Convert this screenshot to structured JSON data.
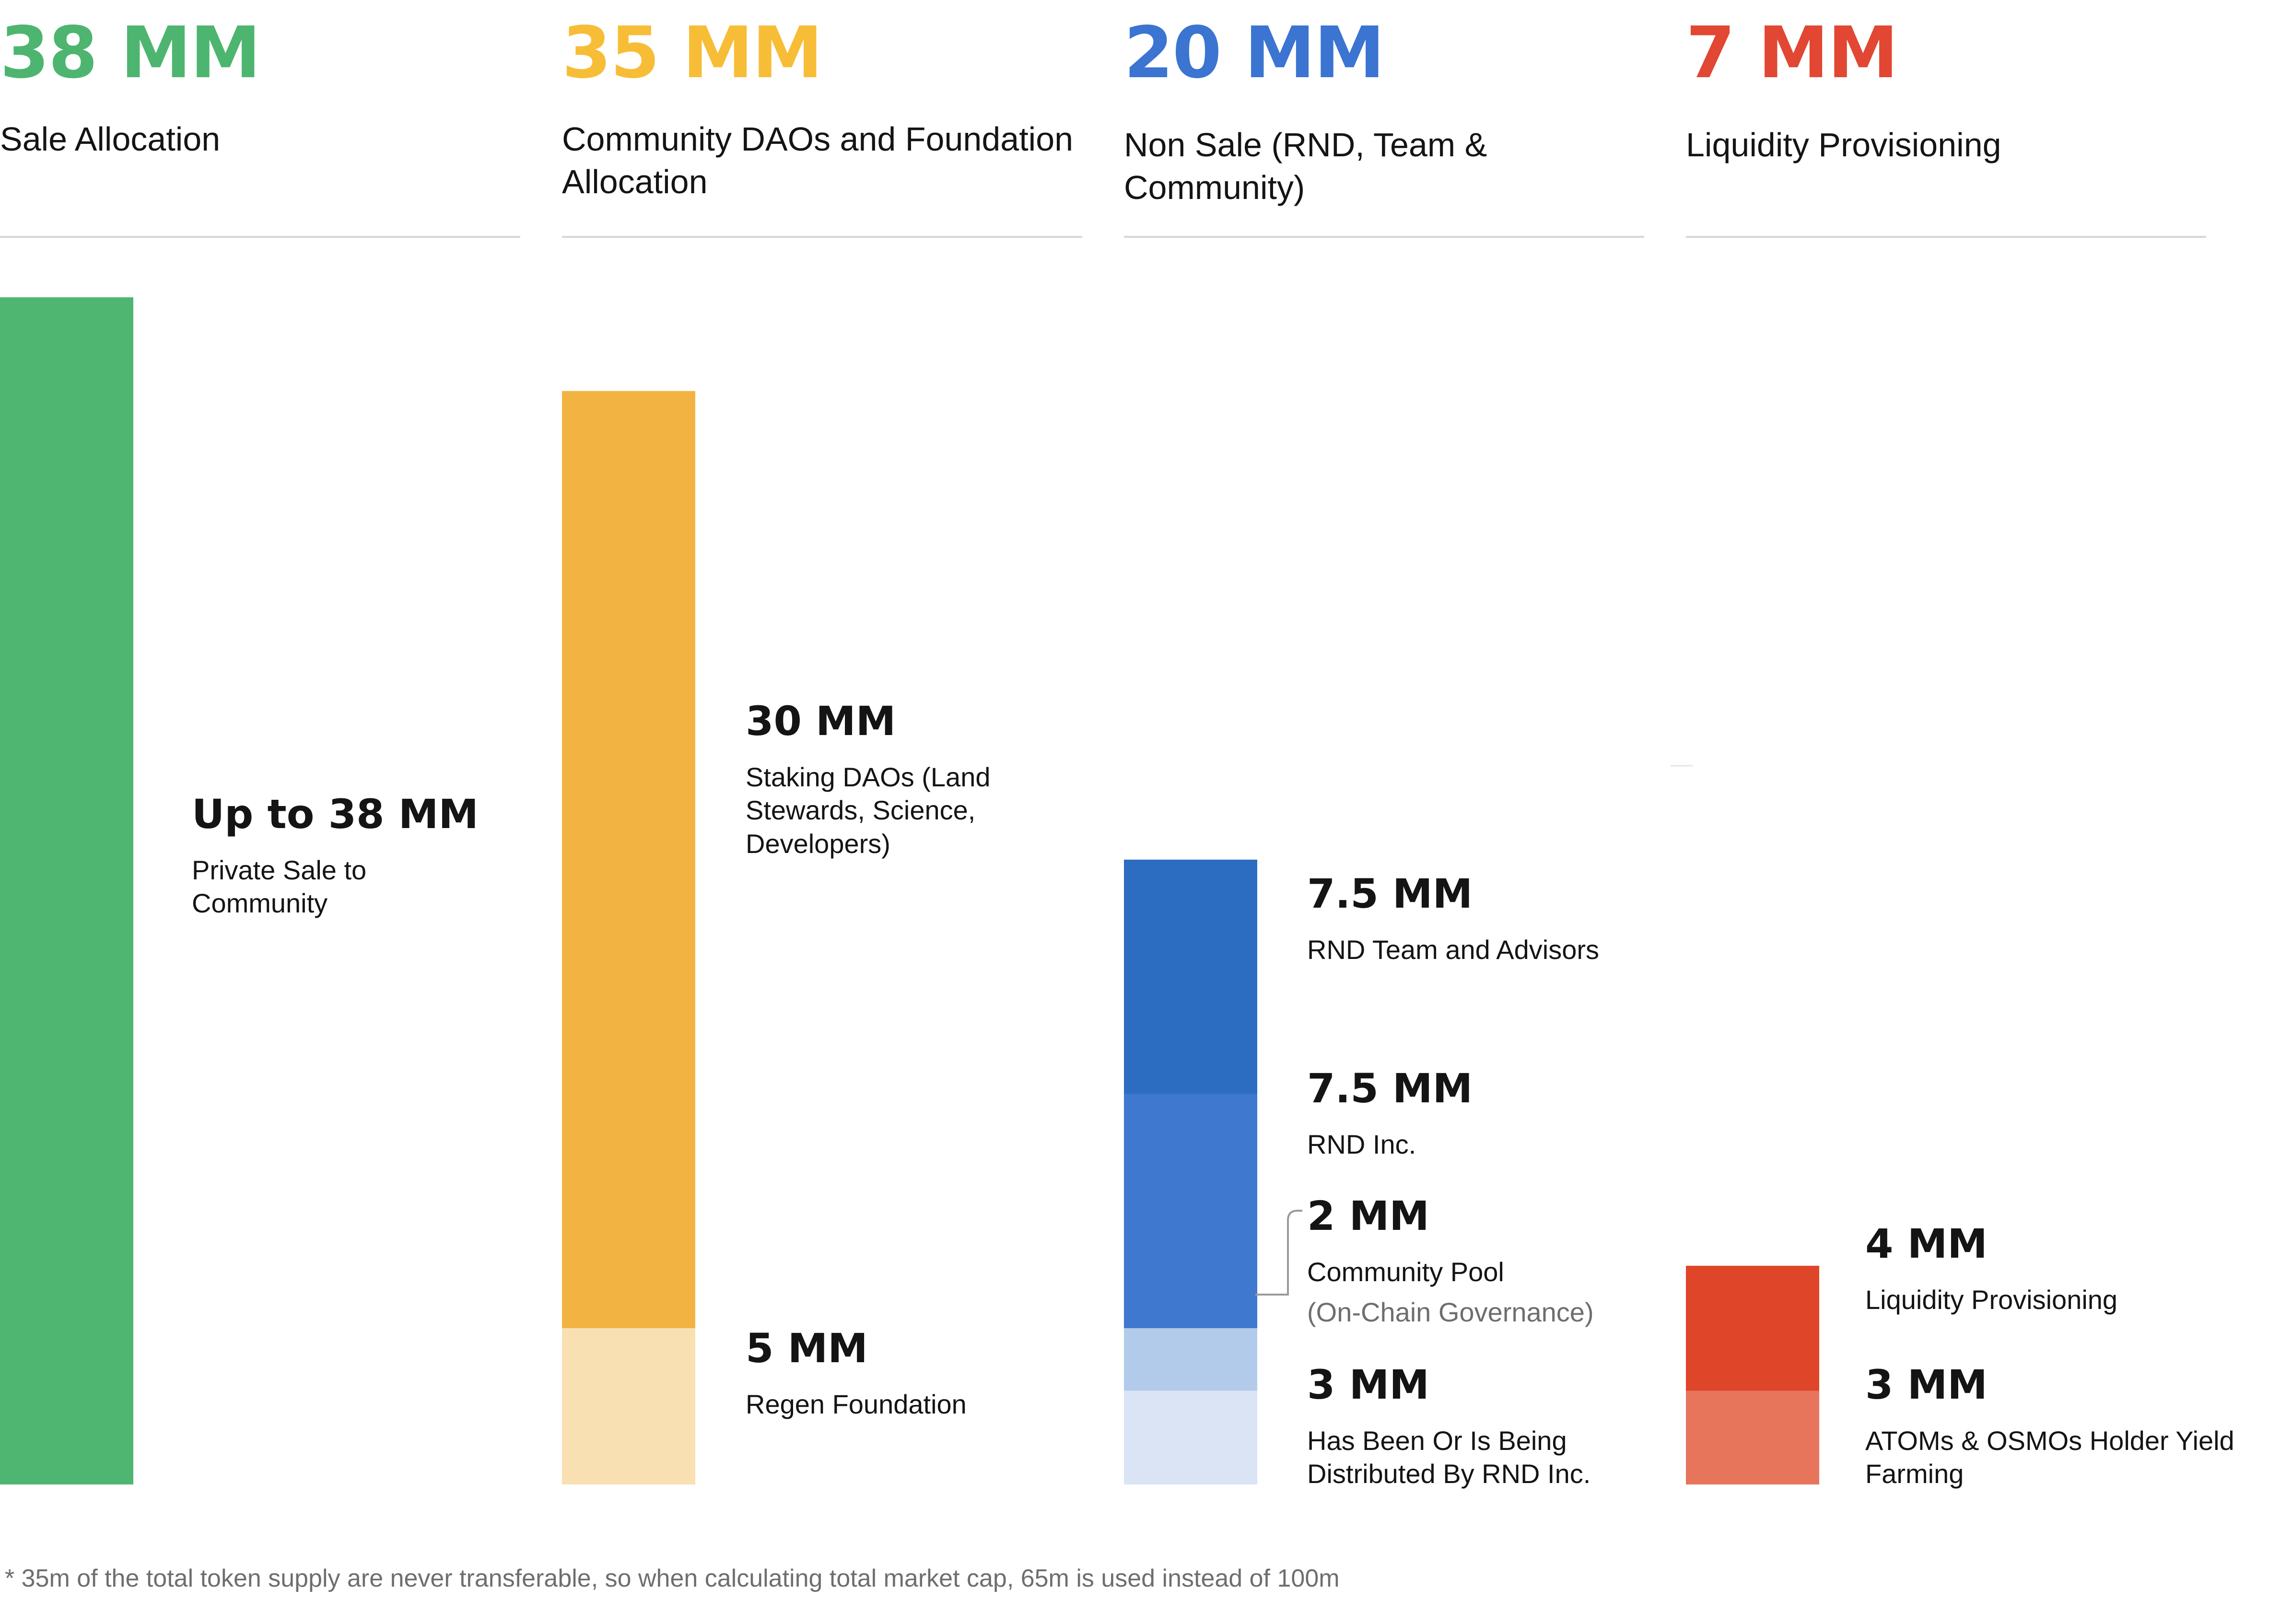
{
  "chart_data": {
    "type": "bar",
    "stacked": true,
    "unit": "MM",
    "columns": [
      {
        "total_label": "38 MM",
        "total": 38,
        "category": "Sale Allocation",
        "color": "#4db56f",
        "segments": [
          {
            "value": 38,
            "value_label": "Up to 38 MM",
            "label": "Private Sale to Community",
            "color": "#4eb671"
          }
        ]
      },
      {
        "total_label": "35 MM",
        "total": 35,
        "category": "Community DAOs and Foundation Allocation",
        "color": "#f7bd37",
        "segments": [
          {
            "value": 30,
            "value_label": "30 MM",
            "label": "Staking DAOs (Land Stewards, Science, Developers)",
            "color": "#f3b343"
          },
          {
            "value": 5,
            "value_label": "5 MM",
            "label": "Regen Foundation",
            "color": "#f8e0b2"
          }
        ]
      },
      {
        "total_label": "20 MM",
        "total": 20,
        "category": "Non Sale (RND, Team & Community)",
        "color": "#3b74d1",
        "segments": [
          {
            "value": 7.5,
            "value_label": "7.5 MM",
            "label": "RND Team and Advisors",
            "color": "#2d6dc1"
          },
          {
            "value": 7.5,
            "value_label": "7.5 MM",
            "label": "RND Inc.",
            "color": "#3e78cf"
          },
          {
            "value": 2,
            "value_label": "2 MM",
            "label": "Community Pool",
            "sublabel": "(On-Chain Governance)",
            "color": "#b2cbeb"
          },
          {
            "value": 3,
            "value_label": "3 MM",
            "label": "Has Been Or Is Being Distributed By RND Inc.",
            "color": "#dae4f5"
          }
        ]
      },
      {
        "total_label": "7 MM",
        "total": 7,
        "category": "Liquidity Provisioning",
        "color": "#e14732",
        "segments": [
          {
            "value": 4,
            "value_label": "4 MM",
            "label": "Liquidity Provisioning",
            "color": "#df4529"
          },
          {
            "value": 3,
            "value_label": "3 MM",
            "label": "ATOMs  & OSMOs Holder Yield Farming",
            "color": "#e6755c"
          }
        ]
      }
    ]
  },
  "footnote": "* 35m of the total token supply are never transferable, so when calculating total market cap, 65m is used instead of 100m"
}
